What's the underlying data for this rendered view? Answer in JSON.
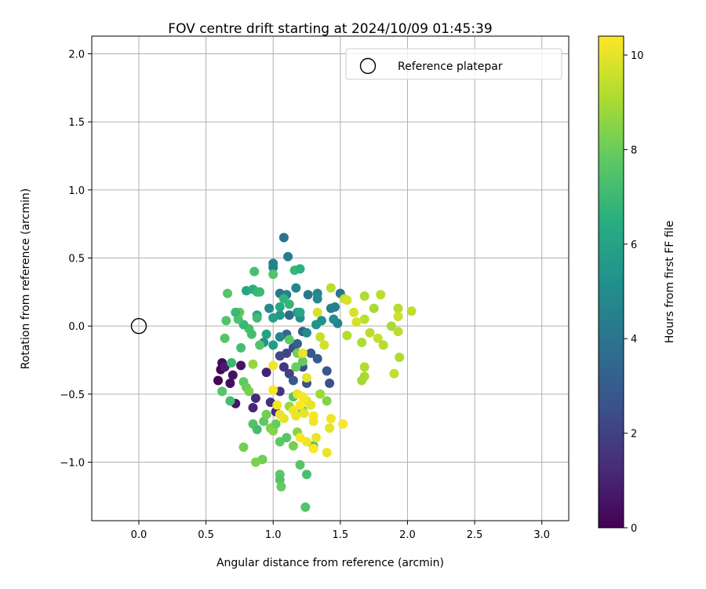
{
  "chart_data": {
    "type": "scatter",
    "title": "FOV centre drift starting at 2024/10/09 01:45:39",
    "xlabel": "Angular distance from reference (arcmin)",
    "ylabel": "Rotation from reference (arcmin)",
    "xlim": [
      -0.35,
      3.2
    ],
    "ylim": [
      -1.43,
      2.13
    ],
    "x_ticks": [
      0.0,
      0.5,
      1.0,
      1.5,
      2.0,
      2.5,
      3.0
    ],
    "x_tick_labels": [
      "0.0",
      "0.5",
      "1.0",
      "1.5",
      "2.0",
      "2.5",
      "3.0"
    ],
    "y_ticks": [
      -1.0,
      -0.5,
      0.0,
      0.5,
      1.0,
      1.5,
      2.0
    ],
    "y_tick_labels": [
      "−1.0",
      "−0.5",
      "0.0",
      "0.5",
      "1.0",
      "1.5",
      "2.0"
    ],
    "grid": true,
    "legend": {
      "position": "top-right",
      "label": "Reference platepar"
    },
    "reference_point": {
      "x": 0.0,
      "y": 0.0
    },
    "colorbar": {
      "label": "Hours from first FF file",
      "min": 0,
      "max": 10.4,
      "colormap": "viridis",
      "ticks": [
        0,
        2,
        4,
        6,
        8,
        10
      ],
      "tick_labels": [
        "0",
        "2",
        "4",
        "6",
        "8",
        "10"
      ]
    },
    "points": [
      [
        0.59,
        -0.4,
        0.1
      ],
      [
        0.61,
        -0.32,
        0.2
      ],
      [
        0.62,
        -0.27,
        0.3
      ],
      [
        0.68,
        -0.42,
        0.4
      ],
      [
        0.7,
        -0.36,
        0.5
      ],
      [
        0.72,
        -0.57,
        0.6
      ],
      [
        0.76,
        -0.29,
        0.5
      ],
      [
        0.64,
        -0.3,
        0.8
      ],
      [
        0.85,
        -0.6,
        1.1
      ],
      [
        0.87,
        -0.53,
        1.2
      ],
      [
        0.95,
        -0.34,
        1.0
      ],
      [
        1.02,
        -0.63,
        1.3
      ],
      [
        0.98,
        -0.56,
        1.4
      ],
      [
        1.05,
        -0.48,
        1.6
      ],
      [
        1.08,
        -0.3,
        1.7
      ],
      [
        1.1,
        -0.2,
        2.1
      ],
      [
        1.05,
        -0.22,
        2.3
      ],
      [
        1.12,
        -0.35,
        2.0
      ],
      [
        1.15,
        -0.16,
        2.5
      ],
      [
        1.22,
        -0.3,
        2.4
      ],
      [
        1.25,
        -0.42,
        2.6
      ],
      [
        1.28,
        -0.2,
        2.8
      ],
      [
        1.33,
        -0.24,
        3.0
      ],
      [
        1.4,
        -0.33,
        2.8
      ],
      [
        1.42,
        -0.42,
        2.7
      ],
      [
        1.18,
        -0.13,
        3.2
      ],
      [
        1.22,
        -0.04,
        3.3
      ],
      [
        1.1,
        -0.06,
        3.4
      ],
      [
        1.12,
        0.08,
        3.5
      ],
      [
        1.15,
        -0.4,
        2.9
      ],
      [
        1.08,
        0.65,
        4.0
      ],
      [
        1.11,
        0.51,
        4.3
      ],
      [
        1.0,
        0.46,
        4.5
      ],
      [
        1.0,
        0.43,
        4.6
      ],
      [
        1.17,
        0.28,
        4.8
      ],
      [
        1.05,
        0.24,
        4.2
      ],
      [
        1.1,
        0.23,
        4.4
      ],
      [
        1.26,
        0.23,
        4.1
      ],
      [
        1.33,
        0.24,
        4.7
      ],
      [
        1.33,
        0.2,
        4.9
      ],
      [
        1.43,
        0.13,
        4.3
      ],
      [
        1.46,
        0.14,
        4.5
      ],
      [
        1.5,
        0.24,
        4.0
      ],
      [
        1.48,
        0.02,
        4.6
      ],
      [
        1.45,
        0.05,
        5.0
      ],
      [
        1.36,
        0.04,
        5.2
      ],
      [
        1.32,
        0.01,
        5.4
      ],
      [
        1.25,
        -0.05,
        5.0
      ],
      [
        1.2,
        0.06,
        5.1
      ],
      [
        1.18,
        0.1,
        5.6
      ],
      [
        1.05,
        0.08,
        5.5
      ],
      [
        1.0,
        0.06,
        5.8
      ],
      [
        1.0,
        -0.14,
        5.7
      ],
      [
        0.95,
        -0.06,
        6.0
      ],
      [
        0.93,
        -0.12,
        5.3
      ],
      [
        0.97,
        0.13,
        4.9
      ],
      [
        0.88,
        0.08,
        5.9
      ],
      [
        1.05,
        -0.08,
        4.8
      ],
      [
        0.8,
        0.26,
        6.2
      ],
      [
        0.85,
        0.27,
        6.5
      ],
      [
        0.88,
        0.25,
        6.8
      ],
      [
        0.9,
        0.25,
        7.0
      ],
      [
        0.86,
        0.4,
        7.3
      ],
      [
        1.0,
        0.38,
        7.5
      ],
      [
        1.16,
        0.41,
        6.9
      ],
      [
        1.2,
        0.42,
        6.6
      ],
      [
        1.08,
        0.2,
        6.8
      ],
      [
        1.05,
        0.14,
        6.3
      ],
      [
        1.12,
        0.16,
        6.9
      ],
      [
        1.2,
        0.1,
        6.2
      ],
      [
        0.88,
        0.06,
        7.1
      ],
      [
        0.82,
        -0.02,
        7.3
      ],
      [
        0.84,
        -0.06,
        7.2
      ],
      [
        0.9,
        -0.14,
        7.5
      ],
      [
        0.78,
        0.01,
        6.9
      ],
      [
        0.74,
        0.05,
        7.4
      ],
      [
        0.75,
        0.1,
        7.8
      ],
      [
        0.66,
        0.24,
        7.6
      ],
      [
        0.65,
        0.04,
        7.5
      ],
      [
        0.72,
        0.1,
        7.0
      ],
      [
        0.64,
        -0.09,
        7.6
      ],
      [
        0.76,
        -0.16,
        7.2
      ],
      [
        0.69,
        -0.27,
        7.0
      ],
      [
        0.68,
        -0.55,
        7.2
      ],
      [
        0.62,
        -0.48,
        7.6
      ],
      [
        0.78,
        -0.41,
        7.8
      ],
      [
        0.8,
        -0.45,
        8.0
      ],
      [
        0.82,
        -0.48,
        8.3
      ],
      [
        0.85,
        -0.72,
        7.5
      ],
      [
        0.88,
        -0.76,
        7.2
      ],
      [
        0.93,
        -0.7,
        7.8
      ],
      [
        0.95,
        -0.65,
        8.1
      ],
      [
        0.98,
        -0.75,
        8.3
      ],
      [
        1.0,
        -0.77,
        8.5
      ],
      [
        1.02,
        -0.72,
        8.0
      ],
      [
        1.05,
        -0.85,
        7.8
      ],
      [
        1.1,
        -0.82,
        7.6
      ],
      [
        1.15,
        -0.88,
        8.2
      ],
      [
        1.18,
        -0.78,
        8.5
      ],
      [
        1.22,
        -0.62,
        8.0
      ],
      [
        1.25,
        -0.55,
        7.8
      ],
      [
        1.15,
        -0.52,
        7.5
      ],
      [
        1.12,
        -0.59,
        8.8
      ],
      [
        1.05,
        -1.09,
        7.7
      ],
      [
        1.05,
        -1.13,
        7.5
      ],
      [
        1.06,
        -1.18,
        7.9
      ],
      [
        1.2,
        -1.02,
        7.6
      ],
      [
        1.25,
        -1.09,
        7.3
      ],
      [
        1.24,
        -1.33,
        7.5
      ],
      [
        0.92,
        -0.98,
        8.1
      ],
      [
        0.87,
        -1.0,
        8.3
      ],
      [
        0.78,
        -0.89,
        8.2
      ],
      [
        1.3,
        -0.88,
        7.4
      ],
      [
        1.17,
        -0.3,
        8.0
      ],
      [
        1.22,
        -0.26,
        7.9
      ],
      [
        1.18,
        -0.2,
        8.2
      ],
      [
        1.12,
        -0.1,
        7.8
      ],
      [
        0.85,
        -0.28,
        8.7
      ],
      [
        1.4,
        -0.55,
        8.4
      ],
      [
        1.35,
        -0.5,
        8.8
      ],
      [
        1.43,
        0.28,
        9.3
      ],
      [
        1.53,
        0.2,
        9.5
      ],
      [
        1.55,
        0.19,
        9.8
      ],
      [
        1.68,
        0.22,
        9.1
      ],
      [
        1.8,
        0.23,
        9.3
      ],
      [
        1.93,
        0.13,
        9.2
      ],
      [
        2.03,
        0.11,
        9.4
      ],
      [
        1.93,
        0.07,
        9.6
      ],
      [
        1.75,
        0.13,
        9.0
      ],
      [
        1.68,
        0.05,
        9.4
      ],
      [
        1.62,
        0.03,
        9.7
      ],
      [
        1.6,
        0.1,
        9.8
      ],
      [
        1.55,
        -0.07,
        9.2
      ],
      [
        1.66,
        -0.12,
        9.1
      ],
      [
        1.72,
        -0.05,
        9.3
      ],
      [
        1.78,
        -0.09,
        9.5
      ],
      [
        1.82,
        -0.14,
        9.2
      ],
      [
        1.88,
        0.0,
        9.0
      ],
      [
        1.93,
        -0.04,
        9.3
      ],
      [
        1.94,
        -0.23,
        9.1
      ],
      [
        1.9,
        -0.35,
        9.4
      ],
      [
        1.68,
        -0.3,
        9.2
      ],
      [
        1.68,
        -0.37,
        9.0
      ],
      [
        1.66,
        -0.4,
        8.9
      ],
      [
        1.35,
        -0.08,
        9.5
      ],
      [
        1.38,
        -0.14,
        9.7
      ],
      [
        1.33,
        0.1,
        9.8
      ],
      [
        1.25,
        -0.38,
        10.0
      ],
      [
        1.22,
        -0.2,
        10.1
      ],
      [
        1.0,
        -0.29,
        10.2
      ],
      [
        1.0,
        -0.47,
        10.3
      ],
      [
        1.18,
        -0.5,
        10.1
      ],
      [
        1.22,
        -0.52,
        10.3
      ],
      [
        1.25,
        -0.55,
        10.2
      ],
      [
        1.28,
        -0.58,
        10.0
      ],
      [
        1.2,
        -0.58,
        10.4
      ],
      [
        1.15,
        -0.62,
        10.2
      ],
      [
        1.17,
        -0.66,
        10.1
      ],
      [
        1.23,
        -0.64,
        10.0
      ],
      [
        1.3,
        -0.66,
        10.3
      ],
      [
        1.3,
        -0.7,
        10.2
      ],
      [
        1.32,
        -0.82,
        10.1
      ],
      [
        1.25,
        -0.85,
        10.2
      ],
      [
        1.2,
        -0.82,
        10.3
      ],
      [
        1.3,
        -0.9,
        10.4
      ],
      [
        1.4,
        -0.93,
        10.1
      ],
      [
        1.43,
        -0.68,
        10.2
      ],
      [
        1.42,
        -0.75,
        10.0
      ],
      [
        1.52,
        -0.72,
        10.3
      ],
      [
        1.08,
        -0.68,
        10.0
      ],
      [
        1.05,
        -0.65,
        10.1
      ],
      [
        1.03,
        -0.58,
        10.2
      ]
    ]
  }
}
